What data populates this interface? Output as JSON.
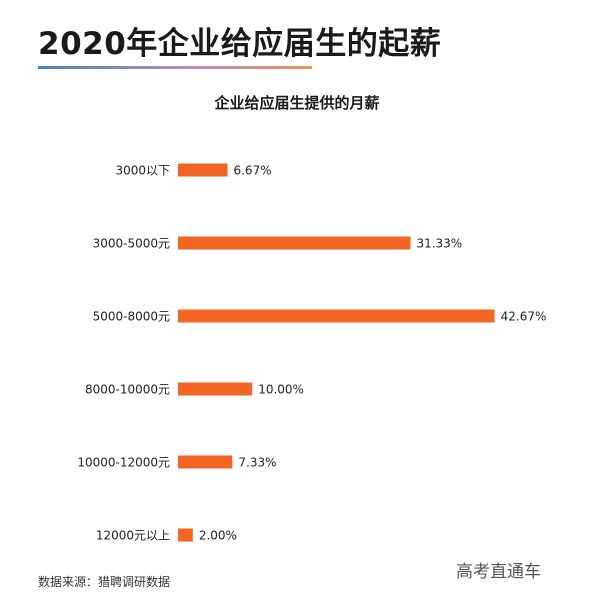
{
  "header": {
    "title": "2020年企业给应届生的起薪"
  },
  "chart_data": {
    "type": "bar",
    "orientation": "horizontal",
    "title": "企业给应届生提供的月薪",
    "categories": [
      "3000以下",
      "3000-5000元",
      "5000-8000元",
      "8000-10000元",
      "10000-12000元",
      "12000元以上"
    ],
    "values": [
      6.67,
      31.33,
      42.67,
      10.0,
      7.33,
      2.0
    ],
    "value_labels": [
      "6.67%",
      "31.33%",
      "42.67%",
      "10.00%",
      "7.33%",
      "2.00%"
    ],
    "unit": "%",
    "xlabel": "",
    "ylabel": "",
    "grid": false,
    "legend": "none",
    "bar_color": "#f26522",
    "title_rule_colors": [
      "#3f86c6",
      "#f0934f"
    ]
  },
  "footer": {
    "source": "数据来源：猎聘调研数据",
    "watermark": "高考直通车"
  }
}
